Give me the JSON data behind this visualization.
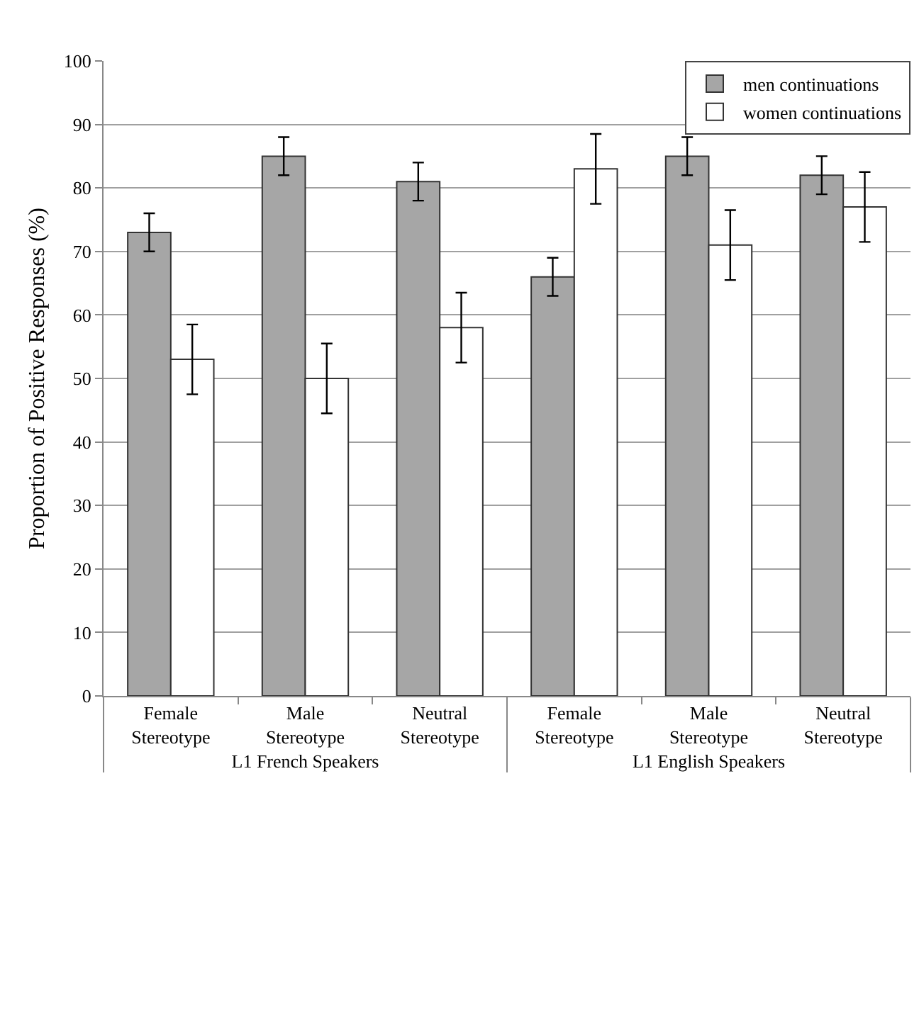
{
  "chart_data": {
    "type": "bar",
    "ylabel": "Proportion of Positive Responses (%)",
    "categories": [
      "Female Stereotype",
      "Male Stereotype",
      "Neutral Stereotype",
      "Female Stereotype",
      "Male Stereotype",
      "Neutral Stereotype"
    ],
    "annotations": [
      "L1 French Speakers",
      "L1 English Speakers"
    ],
    "series": [
      {
        "name": "men continuations",
        "color": "#a6a6a6",
        "values": [
          73,
          85,
          81,
          66,
          85,
          82
        ],
        "errors": [
          3,
          3,
          3,
          3,
          3,
          3
        ]
      },
      {
        "name": "women continuations",
        "color": "#ffffff",
        "values": [
          53,
          50,
          58,
          83,
          71,
          77
        ],
        "errors": [
          5.5,
          5.5,
          5.5,
          5.5,
          5.5,
          5.5
        ]
      }
    ],
    "ylim": [
      0,
      100
    ],
    "yticks": [
      0,
      10,
      20,
      30,
      40,
      50,
      60,
      70,
      80,
      90,
      100
    ],
    "grid": "y",
    "legend": "top right"
  }
}
